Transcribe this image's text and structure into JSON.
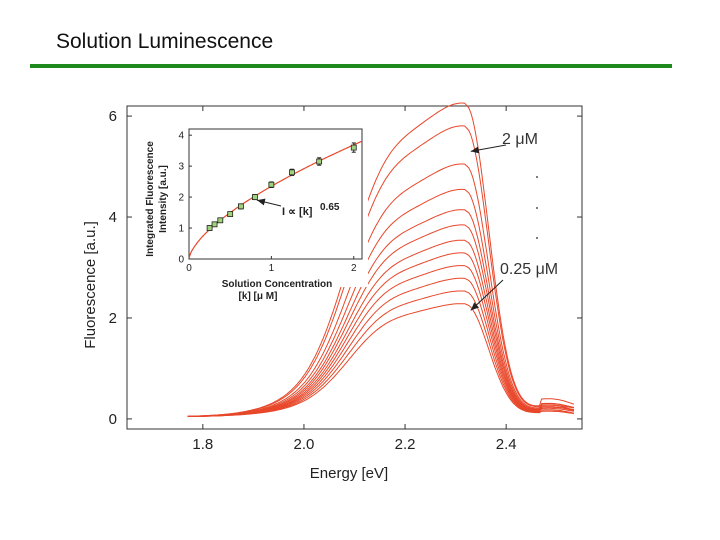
{
  "slide": {
    "title": "Solution Luminescence",
    "rule_color": "#1e8a1e"
  },
  "chart_data": [
    {
      "type": "line",
      "title": "",
      "xlabel": "Energy [eV]",
      "ylabel": "Fluorescence [a.u.]",
      "xlim": [
        1.65,
        2.55
      ],
      "ylim": [
        -0.2,
        6.2
      ],
      "xticks": [
        1.8,
        2.0,
        2.2,
        2.4
      ],
      "yticks": [
        0,
        2,
        4,
        6
      ],
      "grid": false,
      "line_color": "#e8472a",
      "curve_count": 12,
      "peak_energy": 2.32,
      "peak_values": [
        2.2,
        2.45,
        2.7,
        2.95,
        3.2,
        3.45,
        3.75,
        4.05,
        4.45,
        4.95,
        5.7,
        6.15
      ],
      "annotations": [
        {
          "text": "2 μM",
          "arrow_to": {
            "x": 2.33,
            "y": 5.3
          }
        },
        {
          "text": "0.25 μM",
          "arrow_to": {
            "x": 2.33,
            "y": 2.15
          }
        }
      ]
    },
    {
      "type": "scatter",
      "title": "",
      "xlabel": "Solution Concentration",
      "xlabel_line2": "[k] [μ M]",
      "ylabel": "Integrated Fluorescence",
      "ylabel_line2": "Intensity [a.u.]",
      "xlim": [
        0,
        2.1
      ],
      "ylim": [
        0,
        4.2
      ],
      "xticks": [
        0,
        1,
        2
      ],
      "yticks": [
        0,
        1,
        2,
        3,
        4
      ],
      "grid": false,
      "points": [
        {
          "x": 0.25,
          "y": 1.0,
          "err": 0.07
        },
        {
          "x": 0.31,
          "y": 1.12,
          "err": 0.07
        },
        {
          "x": 0.38,
          "y": 1.25,
          "err": 0.07
        },
        {
          "x": 0.5,
          "y": 1.45,
          "err": 0.07
        },
        {
          "x": 0.63,
          "y": 1.7,
          "err": 0.08
        },
        {
          "x": 0.8,
          "y": 2.0,
          "err": 0.08
        },
        {
          "x": 1.0,
          "y": 2.4,
          "err": 0.09
        },
        {
          "x": 1.25,
          "y": 2.8,
          "err": 0.1
        },
        {
          "x": 1.58,
          "y": 3.15,
          "err": 0.12
        },
        {
          "x": 2.0,
          "y": 3.6,
          "err": 0.15
        }
      ],
      "fit": {
        "label": "I ∝ [k]",
        "exponent": "0.65",
        "prefactor": 2.35,
        "color": "#e8472a"
      },
      "point_fill": "#9fd27a"
    }
  ]
}
